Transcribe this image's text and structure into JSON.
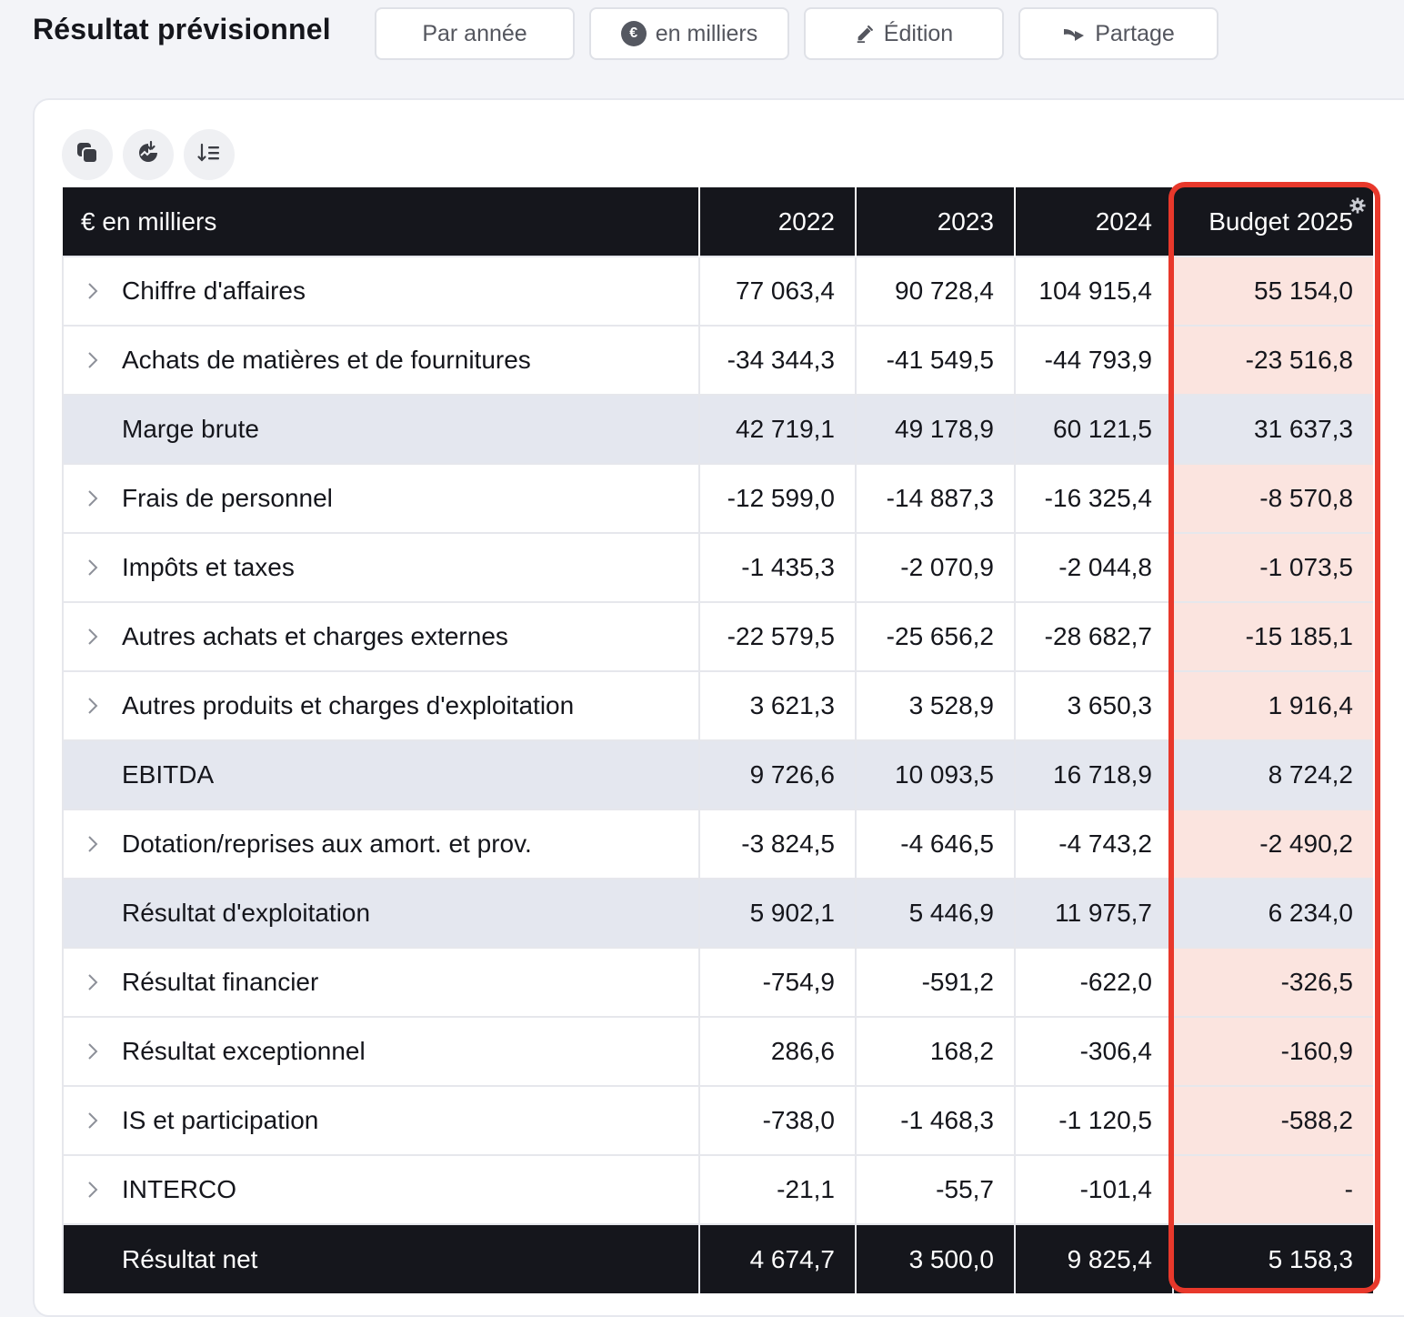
{
  "header": {
    "title": "Résultat prévisionnel",
    "buttons": {
      "period": "Par année",
      "unit": "en milliers",
      "edit": "Édition",
      "share": "Partage"
    },
    "unit_icon_glyph": "€"
  },
  "toolbar": {
    "icons": [
      "copy-icon",
      "chart-download-icon",
      "sort-list-icon"
    ]
  },
  "table": {
    "columns": [
      "€ en milliers",
      "2022",
      "2023",
      "2024",
      "Budget 2025"
    ],
    "rows": [
      {
        "label": "Chiffre d'affaires",
        "values": [
          "77 063,4",
          "90 728,4",
          "104 915,4",
          "55 154,0"
        ]
      },
      {
        "label": "Achats de matières et de fournitures",
        "values": [
          "-34 344,3",
          "-41 549,5",
          "-44 793,9",
          "-23 516,8"
        ]
      },
      {
        "label": "Marge brute",
        "values": [
          "42 719,1",
          "49 178,9",
          "60 121,5",
          "31 637,3"
        ]
      },
      {
        "label": "Frais de personnel",
        "values": [
          "-12 599,0",
          "-14 887,3",
          "-16 325,4",
          "-8 570,8"
        ]
      },
      {
        "label": "Impôts et taxes",
        "values": [
          "-1 435,3",
          "-2 070,9",
          "-2 044,8",
          "-1 073,5"
        ]
      },
      {
        "label": "Autres achats et charges externes",
        "values": [
          "-22 579,5",
          "-25 656,2",
          "-28 682,7",
          "-15 185,1"
        ]
      },
      {
        "label": "Autres produits et charges d'exploitation",
        "values": [
          "3 621,3",
          "3 528,9",
          "3 650,3",
          "1 916,4"
        ]
      },
      {
        "label": "EBITDA",
        "values": [
          "9 726,6",
          "10 093,5",
          "16 718,9",
          "8 724,2"
        ]
      },
      {
        "label": "Dotation/reprises aux amort. et prov.",
        "values": [
          "-3 824,5",
          "-4 646,5",
          "-4 743,2",
          "-2 490,2"
        ]
      },
      {
        "label": "Résultat d'exploitation",
        "values": [
          "5 902,1",
          "5 446,9",
          "11 975,7",
          "6 234,0"
        ]
      },
      {
        "label": "Résultat financier",
        "values": [
          "-754,9",
          "-591,2",
          "-622,0",
          "-326,5"
        ]
      },
      {
        "label": "Résultat exceptionnel",
        "values": [
          "286,6",
          "168,2",
          "-306,4",
          "-160,9"
        ]
      },
      {
        "label": "IS et participation",
        "values": [
          "-738,0",
          "-1 468,3",
          "-1 120,5",
          "-588,2"
        ]
      },
      {
        "label": "INTERCO",
        "values": [
          "-21,1",
          "-55,7",
          "-101,4",
          "-"
        ]
      },
      {
        "label": "Résultat net",
        "values": [
          "4 674,7",
          "3 500,0",
          "9 825,4",
          "5 158,3"
        ]
      }
    ]
  },
  "colors": {
    "header_bg": "#15161c",
    "subtotal_bg": "#e4e7ef",
    "budget_bg": "#fbe4df",
    "highlight": "#e8382b"
  }
}
